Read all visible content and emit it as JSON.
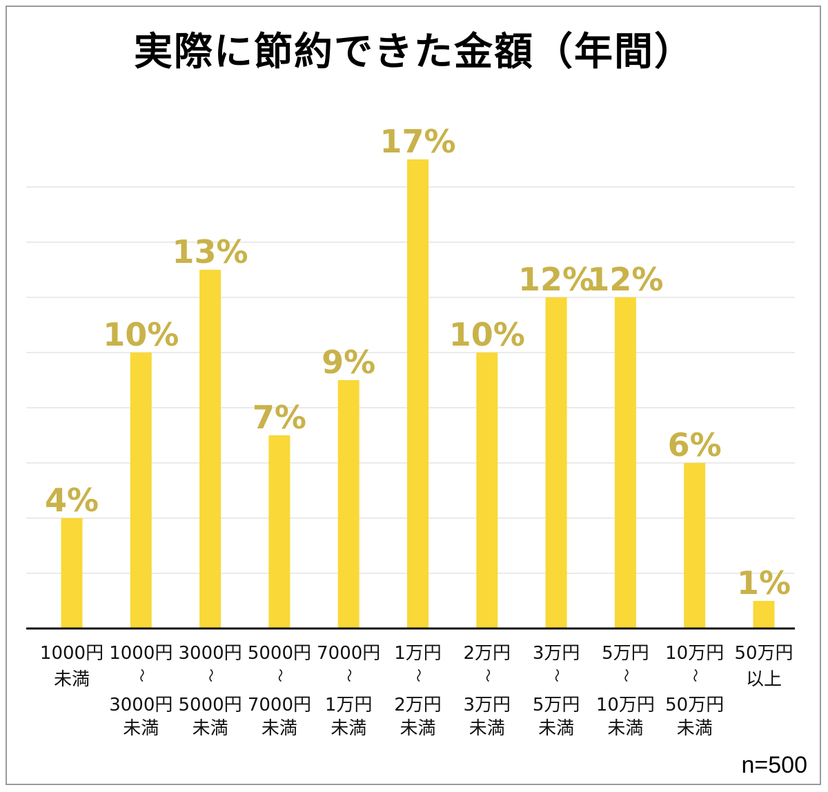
{
  "chart_data": {
    "type": "bar",
    "title": "実際に節約できた金額（年間）",
    "xlabel": "",
    "ylabel": "",
    "unit": "%",
    "ylim": [
      0,
      20
    ],
    "grid": true,
    "bar_color": "#f9d838",
    "label_color": "#c9b24a",
    "categories": [
      [
        "1000円",
        "未満"
      ],
      [
        "1000円",
        "〜",
        "3000円",
        "未満"
      ],
      [
        "3000円",
        "〜",
        "5000円",
        "未満"
      ],
      [
        "5000円",
        "〜",
        "7000円",
        "未満"
      ],
      [
        "7000円",
        "〜",
        "1万円",
        "未満"
      ],
      [
        "1万円",
        "〜",
        "2万円",
        "未満"
      ],
      [
        "2万円",
        "〜",
        "3万円",
        "未満"
      ],
      [
        "3万円",
        "〜",
        "5万円",
        "未満"
      ],
      [
        "5万円",
        "〜",
        "10万円",
        "未満"
      ],
      [
        "10万円",
        "〜",
        "50万円",
        "未満"
      ],
      [
        "50万円",
        "以上"
      ]
    ],
    "values": [
      4,
      10,
      13,
      7,
      9,
      17,
      10,
      12,
      12,
      6,
      1
    ],
    "data_labels": [
      "4%",
      "10%",
      "13%",
      "7%",
      "9%",
      "17%",
      "10%",
      "12%",
      "12%",
      "6%",
      "1%"
    ],
    "note": "n=500"
  }
}
